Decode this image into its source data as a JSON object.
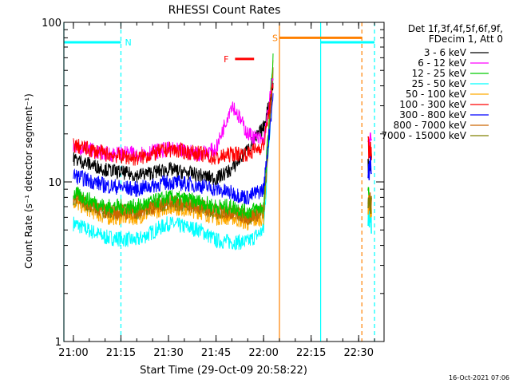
{
  "chart_data": {
    "type": "line",
    "title": "RHESSI Count Rates",
    "xlabel": "Start Time (29-Oct-09 20:58:22)",
    "ylabel": "Count Rate (s⁻¹ detector segment⁻¹)",
    "yscale": "log",
    "ylim": [
      1,
      100
    ],
    "xlim": [
      "20:57",
      "22:38"
    ],
    "x_ticks": [
      "21:00",
      "21:15",
      "21:30",
      "21:45",
      "22:00",
      "22:15",
      "22:30"
    ],
    "y_ticks": [
      "1",
      "10",
      "100"
    ],
    "legend": {
      "header": [
        "Det 1f,3f,4f,5f,6f,9f,",
        "FDecim 1, Att 0"
      ],
      "placement": "right-outside"
    },
    "series": [
      {
        "name": "3 - 6 keV",
        "color": "#000000",
        "x": [
          "21:00",
          "21:10",
          "21:20",
          "21:30",
          "21:40",
          "21:45",
          "21:50",
          "21:55",
          "22:00",
          "22:03"
        ],
        "values": [
          14,
          12,
          11,
          12,
          11,
          10.5,
          12,
          16,
          22,
          40
        ]
      },
      {
        "name": "6 - 12 keV",
        "color": "#ff00ff",
        "x": [
          "21:00",
          "21:10",
          "21:20",
          "21:30",
          "21:40",
          "21:45",
          "21:50",
          "21:55",
          "22:00",
          "22:03"
        ],
        "values": [
          17,
          15,
          15,
          16,
          15,
          16,
          31,
          20,
          18,
          45
        ]
      },
      {
        "name": "12 - 25 keV",
        "color": "#00cc00",
        "x": [
          "21:00",
          "21:10",
          "21:20",
          "21:30",
          "21:40",
          "21:45",
          "21:50",
          "21:55",
          "22:00",
          "22:03"
        ],
        "values": [
          8.5,
          7,
          7,
          8,
          7.5,
          7,
          7,
          6.5,
          7,
          62
        ]
      },
      {
        "name": "25 - 50 keV",
        "color": "#00ffff",
        "x": [
          "21:00",
          "21:10",
          "21:20",
          "21:30",
          "21:40",
          "21:45",
          "21:50",
          "21:55",
          "22:00",
          "22:03"
        ],
        "values": [
          5.5,
          4.5,
          4.3,
          5.5,
          5,
          4.3,
          4.2,
          4.2,
          5,
          48
        ]
      },
      {
        "name": "50 - 100 keV",
        "color": "#ffaa00",
        "x": [
          "21:00",
          "21:10",
          "21:20",
          "21:30",
          "21:40",
          "21:45",
          "21:50",
          "21:55",
          "22:00",
          "22:03"
        ],
        "values": [
          7.5,
          6,
          6,
          7,
          6.5,
          6,
          6,
          5.5,
          6,
          55
        ]
      },
      {
        "name": "100 - 300 keV",
        "color": "#ff0000",
        "x": [
          "21:00",
          "21:10",
          "21:20",
          "21:30",
          "21:40",
          "21:45",
          "21:50",
          "21:55",
          "22:00",
          "22:03"
        ],
        "values": [
          17,
          15,
          14,
          16,
          15,
          14,
          15,
          15,
          17,
          40
        ]
      },
      {
        "name": "300 - 800 keV",
        "color": "#0000ff",
        "x": [
          "21:00",
          "21:10",
          "21:20",
          "21:30",
          "21:40",
          "21:45",
          "21:50",
          "21:55",
          "22:00",
          "22:03"
        ],
        "values": [
          11,
          9.5,
          9,
          10,
          9.5,
          9,
          8.5,
          8,
          9,
          35
        ]
      },
      {
        "name": "800 - 7000 keV",
        "color": "#cc6600",
        "x": [
          "21:00",
          "21:10",
          "21:20",
          "21:30",
          "21:40",
          "21:45",
          "21:50",
          "21:55",
          "22:00",
          "22:03"
        ],
        "values": [
          8,
          6.5,
          6.5,
          7.5,
          7,
          6.5,
          6.5,
          6,
          6.5,
          50
        ]
      },
      {
        "name": "7000 - 15000 keV",
        "color": "#808000",
        "x": [
          "21:00",
          "21:10",
          "21:20",
          "21:30",
          "21:40",
          "21:45",
          "21:50",
          "21:55",
          "22:00",
          "22:03"
        ],
        "values": [
          8,
          6.5,
          6.5,
          7.5,
          7,
          6.5,
          6.5,
          6,
          6.5,
          45
        ]
      }
    ],
    "annotations": [
      {
        "text": "N",
        "color": "#00ffff",
        "bar": [
          "20:57",
          "21:15"
        ],
        "y": 75
      },
      {
        "text": "S",
        "color": "#ff8000",
        "bar": [
          "22:05",
          "22:31"
        ],
        "y": 80
      },
      {
        "text": "",
        "color": "#00ffff",
        "bar": [
          "22:18",
          "22:35"
        ],
        "y": 75
      },
      {
        "text": "F",
        "color": "#ff0000",
        "bar": [
          "21:51",
          "21:57"
        ],
        "y": 59
      }
    ],
    "vlines": [
      {
        "x": "20:57",
        "color": "#00ffff",
        "style": "solid"
      },
      {
        "x": "21:15",
        "color": "#00ffff",
        "style": "dashed"
      },
      {
        "x": "22:05",
        "color": "#ff8000",
        "style": "solid"
      },
      {
        "x": "22:18",
        "color": "#00ffff",
        "style": "solid"
      },
      {
        "x": "22:31",
        "color": "#ff8000",
        "style": "dashed"
      },
      {
        "x": "22:35",
        "color": "#00ffff",
        "style": "dashed"
      }
    ],
    "late_segment": {
      "x": [
        "22:33",
        "22:34"
      ],
      "series_values": {
        "3 - 6 keV": [
          13,
          14
        ],
        "6 - 12 keV": [
          18,
          17
        ],
        "12 - 25 keV": [
          8.5,
          7
        ],
        "25 - 50 keV": [
          6,
          5.5
        ],
        "50 - 100 keV": [
          7.5,
          6.5
        ],
        "100 - 300 keV": [
          17,
          16
        ],
        "300 - 800 keV": [
          12,
          13
        ],
        "800 - 7000 keV": [
          8,
          7
        ],
        "7000 - 15000 keV": [
          8,
          7
        ]
      }
    },
    "grid": false
  },
  "timestamp": "16-Oct-2021 07:06"
}
